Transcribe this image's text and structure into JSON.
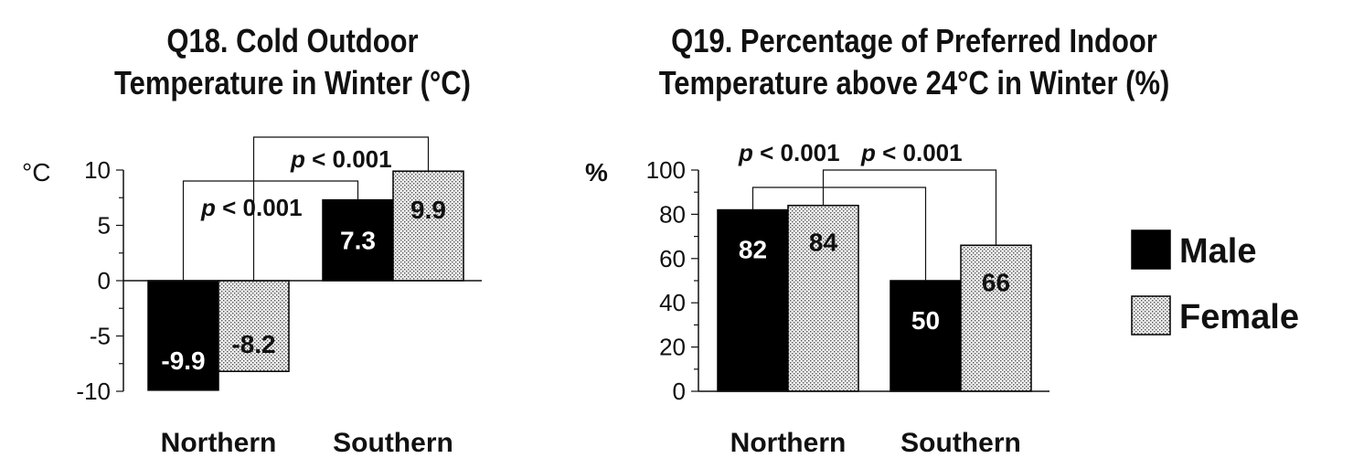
{
  "chart_data": [
    {
      "type": "bar",
      "title_line1": "Q18. Cold Outdoor",
      "title_line2": "Temperature in Winter (°C)",
      "yunit": "°C",
      "ylim": [
        -10,
        10
      ],
      "yticks": [
        10,
        5,
        0,
        -5,
        -10
      ],
      "categories": [
        "Northern",
        "Southern"
      ],
      "series": [
        {
          "name": "Male",
          "values": [
            -9.9,
            7.3
          ],
          "labels": [
            "-9.9",
            "7.3"
          ]
        },
        {
          "name": "Female",
          "values": [
            -8.2,
            9.9
          ],
          "labels": [
            "-8.2",
            "9.9"
          ]
        }
      ],
      "annotations": [
        {
          "p": "p",
          "text": " < 0.001",
          "pair": "male"
        },
        {
          "p": "p",
          "text": " < 0.001",
          "pair": "female"
        }
      ]
    },
    {
      "type": "bar",
      "title_line1": "Q19. Percentage of Preferred Indoor",
      "title_line2": "Temperature above 24°C in Winter (%)",
      "yunit": "%",
      "ylim": [
        0,
        100
      ],
      "yticks": [
        100,
        80,
        60,
        40,
        20,
        0
      ],
      "categories": [
        "Northern",
        "Southern"
      ],
      "series": [
        {
          "name": "Male",
          "values": [
            82,
            50
          ],
          "labels": [
            "82",
            "50"
          ]
        },
        {
          "name": "Female",
          "values": [
            84,
            66
          ],
          "labels": [
            "84",
            "66"
          ]
        }
      ],
      "annotations": [
        {
          "p": "p",
          "text": " < 0.001",
          "pair": "male"
        },
        {
          "p": "p",
          "text": " < 0.001",
          "pair": "female"
        }
      ]
    }
  ],
  "legend": {
    "items": [
      {
        "name": "Male",
        "fill": "#000000"
      },
      {
        "name": "Female",
        "fill": "dots"
      }
    ]
  }
}
